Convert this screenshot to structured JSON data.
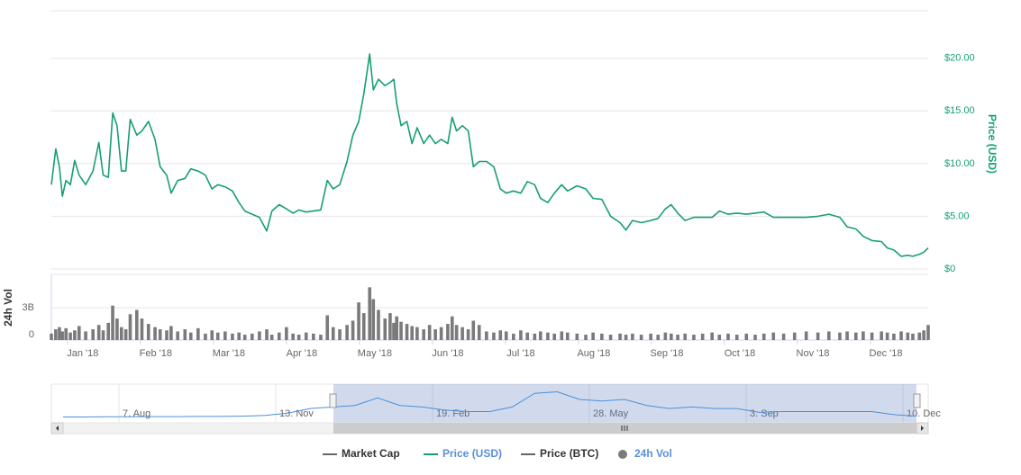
{
  "chart_data": {
    "type": "line",
    "xlim": [
      -0.43,
      11.58
    ],
    "xticks": [
      {
        "value": 0,
        "label": "Jan '18"
      },
      {
        "value": 1,
        "label": "Feb '18"
      },
      {
        "value": 2,
        "label": "Mar '18"
      },
      {
        "value": 3,
        "label": "Apr '18"
      },
      {
        "value": 4,
        "label": "May '18"
      },
      {
        "value": 5,
        "label": "Jun '18"
      },
      {
        "value": 6,
        "label": "Jul '18"
      },
      {
        "value": 7,
        "label": "Aug '18"
      },
      {
        "value": 8,
        "label": "Sep '18"
      },
      {
        "value": 9,
        "label": "Oct '18"
      },
      {
        "value": 10,
        "label": "Nov '18"
      },
      {
        "value": 11,
        "label": "Dec '18"
      }
    ],
    "x": [
      -0.43,
      -0.37,
      -0.32,
      -0.28,
      -0.23,
      -0.17,
      -0.11,
      -0.05,
      0.04,
      0.14,
      0.22,
      0.28,
      0.35,
      0.41,
      0.47,
      0.53,
      0.59,
      0.65,
      0.74,
      0.81,
      0.9,
      0.99,
      1.06,
      1.15,
      1.21,
      1.3,
      1.4,
      1.48,
      1.58,
      1.68,
      1.77,
      1.85,
      1.95,
      2.05,
      2.14,
      2.22,
      2.32,
      2.42,
      2.52,
      2.59,
      2.69,
      2.79,
      2.88,
      2.96,
      3.06,
      3.16,
      3.26,
      3.35,
      3.43,
      3.52,
      3.62,
      3.7,
      3.78,
      3.85,
      3.93,
      3.98,
      4.05,
      4.14,
      4.21,
      4.26,
      4.3,
      4.36,
      4.44,
      4.51,
      4.58,
      4.67,
      4.75,
      4.83,
      4.91,
      5.0,
      5.06,
      5.12,
      5.2,
      5.28,
      5.35,
      5.43,
      5.53,
      5.63,
      5.72,
      5.8,
      5.9,
      6.0,
      6.09,
      6.19,
      6.27,
      6.37,
      6.46,
      6.56,
      6.64,
      6.77,
      6.89,
      6.99,
      7.11,
      7.23,
      7.36,
      7.44,
      7.53,
      7.65,
      7.78,
      7.88,
      7.98,
      8.06,
      8.15,
      8.25,
      8.37,
      8.49,
      8.62,
      8.72,
      8.84,
      8.96,
      9.09,
      9.21,
      9.33,
      9.46,
      9.6,
      9.75,
      9.91,
      10.07,
      10.22,
      10.37,
      10.47,
      10.59,
      10.69,
      10.81,
      10.94,
      11.02,
      11.11,
      11.21,
      11.3,
      11.37,
      11.46,
      11.52,
      11.58
    ],
    "ylim": [
      0,
      24.5
    ],
    "yticks": [
      {
        "value": 0,
        "label": "$0"
      },
      {
        "value": 5,
        "label": "$5.00"
      },
      {
        "value": 10,
        "label": "$10.00"
      },
      {
        "value": 15,
        "label": "$15.00"
      },
      {
        "value": 20,
        "label": "$20.00"
      }
    ],
    "y_label": "Price (USD)",
    "y2lim": [
      0,
      6100000000
    ],
    "y2ticks": [
      0,
      {
        "value": 3000000000,
        "label": "3B"
      }
    ],
    "y2_label": "24h Vol",
    "grid": true,
    "series": [
      {
        "name": "Market Cap",
        "color": "#666666",
        "visible": false
      },
      {
        "name": "Price (USD)",
        "color": "#16a06e",
        "text_color": "#5b8fd6",
        "values": [
          8.0,
          11.4,
          9.7,
          6.9,
          8.4,
          8.0,
          10.3,
          8.9,
          8.0,
          9.3,
          12.0,
          8.9,
          8.7,
          14.8,
          13.6,
          9.3,
          9.3,
          14.2,
          12.7,
          13.1,
          14.0,
          12.3,
          9.7,
          8.9,
          7.2,
          8.4,
          8.6,
          9.5,
          9.3,
          8.9,
          7.6,
          8.0,
          7.8,
          7.4,
          6.3,
          5.5,
          5.2,
          4.9,
          3.6,
          5.5,
          6.1,
          5.7,
          5.3,
          5.6,
          5.4,
          5.5,
          5.6,
          8.4,
          7.6,
          8.0,
          10.2,
          12.7,
          14.0,
          16.6,
          20.4,
          17.0,
          18.0,
          17.4,
          17.7,
          18.0,
          15.7,
          13.6,
          14.0,
          11.9,
          13.4,
          11.9,
          12.7,
          11.9,
          12.3,
          11.9,
          14.4,
          13.1,
          13.6,
          13.1,
          9.7,
          10.2,
          10.2,
          9.7,
          7.6,
          7.2,
          7.4,
          7.2,
          8.3,
          8.0,
          6.7,
          6.3,
          7.2,
          8.0,
          7.4,
          7.9,
          7.6,
          6.7,
          6.6,
          5.0,
          4.4,
          3.7,
          4.6,
          4.4,
          4.6,
          4.8,
          5.7,
          6.1,
          5.3,
          4.6,
          4.9,
          4.9,
          4.9,
          5.5,
          5.2,
          5.3,
          5.2,
          5.3,
          5.4,
          4.9,
          4.9,
          4.9,
          4.9,
          5.0,
          5.2,
          4.9,
          4.0,
          3.8,
          3.1,
          2.7,
          2.6,
          2.0,
          1.8,
          1.2,
          1.3,
          1.2,
          1.4,
          1.6,
          2.0
        ]
      },
      {
        "name": "Price (BTC)",
        "color": "#666666",
        "visible": false
      },
      {
        "name": "24h Vol",
        "type": "bar",
        "axis": "y2",
        "color": "#7a7a7a",
        "text_color": "#5b8fd6",
        "values": [
          600000000.0,
          1000000000.0,
          1200000000.0,
          800000000.0,
          1100000000.0,
          700000000.0,
          900000000.0,
          1300000000.0,
          800000000.0,
          1000000000.0,
          1400000000.0,
          900000000.0,
          1600000000.0,
          3200000000.0,
          2000000000.0,
          1200000000.0,
          1000000000.0,
          2400000000.0,
          2800000000.0,
          2000000000.0,
          1500000000.0,
          1200000000.0,
          1000000000.0,
          900000000.0,
          1300000000.0,
          800000000.0,
          1000000000.0,
          700000000.0,
          1100000000.0,
          600000000.0,
          900000000.0,
          700000000.0,
          800000000.0,
          600000000.0,
          700000000.0,
          500000000.0,
          600000000.0,
          800000000.0,
          1000000000.0,
          500000000.0,
          700000000.0,
          1200000000.0,
          600000000.0,
          500000000.0,
          700000000.0,
          600000000.0,
          500000000.0,
          2300000000.0,
          1200000000.0,
          1000000000.0,
          1400000000.0,
          1800000000.0,
          3500000000.0,
          2500000000.0,
          4900000000.0,
          3800000000.0,
          2800000000.0,
          2000000000.0,
          2500000000.0,
          1600000000.0,
          2200000000.0,
          1700000000.0,
          1500000000.0,
          1300000000.0,
          1200000000.0,
          1000000000.0,
          1400000000.0,
          1000000000.0,
          1200000000.0,
          1500000000.0,
          2200000000.0,
          1400000000.0,
          1200000000.0,
          1000000000.0,
          1800000000.0,
          1400000000.0,
          800000000.0,
          700000000.0,
          900000000.0,
          800000000.0,
          600000000.0,
          900000000.0,
          700000000.0,
          600000000.0,
          800000000.0,
          700000000.0,
          600000000.0,
          800000000.0,
          700000000.0,
          600000000.0,
          500000000.0,
          700000000.0,
          600000000.0,
          500000000.0,
          600000000.0,
          500000000.0,
          600000000.0,
          500000000.0,
          600000000.0,
          500000000.0,
          700000000.0,
          600000000.0,
          500000000.0,
          600000000.0,
          500000000.0,
          600000000.0,
          700000000.0,
          500000000.0,
          600000000.0,
          500000000.0,
          600000000.0,
          500000000.0,
          600000000.0,
          700000000.0,
          600000000.0,
          700000000.0,
          800000000.0,
          700000000.0,
          800000000.0,
          700000000.0,
          800000000.0,
          700000000.0,
          800000000.0,
          700000000.0,
          800000000.0,
          700000000.0,
          600000000.0,
          800000000.0,
          700000000.0,
          600000000.0,
          700000000.0,
          900000000.0,
          1400000000.0
        ]
      }
    ],
    "navigator": {
      "labels": [
        "7. Aug",
        "13. Nov",
        "19. Feb",
        "28. May",
        "3. Sep",
        "10. Dec"
      ],
      "color": "#4a90d9",
      "ylim": [
        0,
        23
      ],
      "values": [
        1.5,
        1.5,
        1.6,
        1.6,
        1.7,
        1.7,
        1.8,
        1.8,
        2.0,
        2.5,
        4,
        7,
        8,
        9,
        14,
        9,
        8,
        6,
        5,
        5,
        8,
        17,
        18,
        13,
        12,
        13,
        9,
        7,
        8,
        7,
        7,
        4.5,
        5,
        5,
        5,
        5,
        5,
        3,
        2
      ]
    }
  }
}
